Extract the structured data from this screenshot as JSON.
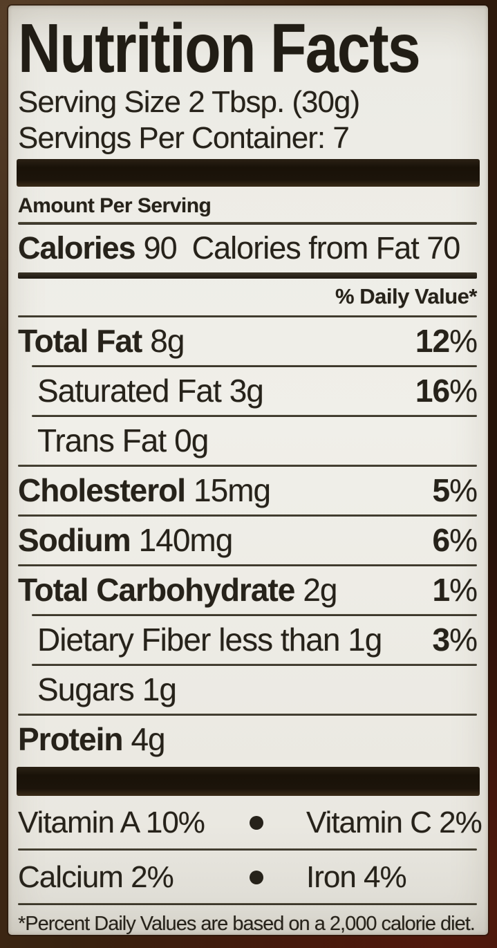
{
  "label": {
    "title": "Nutrition Facts",
    "serving_size": "Serving Size 2 Tbsp. (30g)",
    "servings_per_container": "Servings Per Container: 7",
    "amount_per_serving": "Amount Per Serving",
    "calories_label": "Calories",
    "calories_value": "90",
    "calories_from_fat": "Calories from Fat 70",
    "daily_value_header": "% Daily Value*",
    "nutrients": [
      {
        "name": "Total Fat",
        "amount": "8g",
        "dv": "12%",
        "name_bold": true,
        "indent": false,
        "sep": "indent"
      },
      {
        "name": "Saturated Fat",
        "amount": "3g",
        "dv": "16%",
        "name_bold": false,
        "indent": true,
        "sep": "indent"
      },
      {
        "name": "Trans Fat",
        "amount": "0g",
        "dv": "",
        "name_bold": false,
        "indent": true,
        "sep": "full"
      },
      {
        "name": "Cholesterol",
        "amount": "15mg",
        "dv": "5%",
        "name_bold": true,
        "indent": false,
        "sep": "full"
      },
      {
        "name": "Sodium",
        "amount": "140mg",
        "dv": "6%",
        "name_bold": true,
        "indent": false,
        "sep": "full"
      },
      {
        "name": "Total Carbohydrate",
        "amount": "2g",
        "dv": "1%",
        "name_bold": true,
        "indent": false,
        "sep": "indent"
      },
      {
        "name": "Dietary Fiber",
        "amount": "less than 1g",
        "dv": "3%",
        "name_bold": false,
        "indent": true,
        "sep": "indent"
      },
      {
        "name": "Sugars",
        "amount": "1g",
        "dv": "",
        "name_bold": false,
        "indent": true,
        "sep": "full"
      },
      {
        "name": "Protein",
        "amount": "4g",
        "dv": "",
        "name_bold": true,
        "indent": false,
        "sep": "none"
      }
    ],
    "micronutrients": [
      {
        "left": "Vitamin A 10%",
        "right": "Vitamin C 2%"
      },
      {
        "left": "Calcium 2%",
        "right": "Iron 4%"
      }
    ],
    "footnote": "*Percent Daily Values are based on a 2,000 calorie diet.",
    "colors": {
      "label_background": "#f0efe9",
      "text": "#26221a",
      "bar": "#1c140a",
      "frame_brown": "#38220f",
      "frame_maroon": "#5a1f12"
    }
  }
}
